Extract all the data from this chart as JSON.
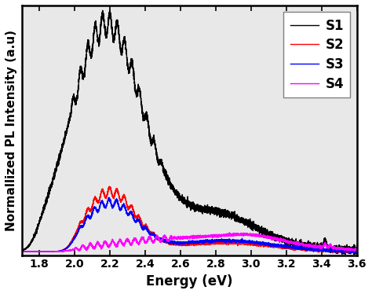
{
  "xlabel": "Energy (eV)",
  "ylabel": "Normallized PL Intensity (a.u)",
  "xlim": [
    1.7,
    3.6
  ],
  "ylim": [
    -0.015,
    1.02
  ],
  "xticks": [
    1.8,
    2.0,
    2.2,
    2.4,
    2.6,
    2.8,
    3.0,
    3.2,
    3.4,
    3.6
  ],
  "legend_labels": [
    "S1",
    "S2",
    "S3",
    "S4"
  ],
  "colors": [
    "black",
    "red",
    "blue",
    "magenta"
  ],
  "linewidth": 1.0,
  "legend_fontsize": 12,
  "axis_fontsize": 12,
  "tick_fontsize": 10,
  "plot_bg": "#e8e8e8"
}
